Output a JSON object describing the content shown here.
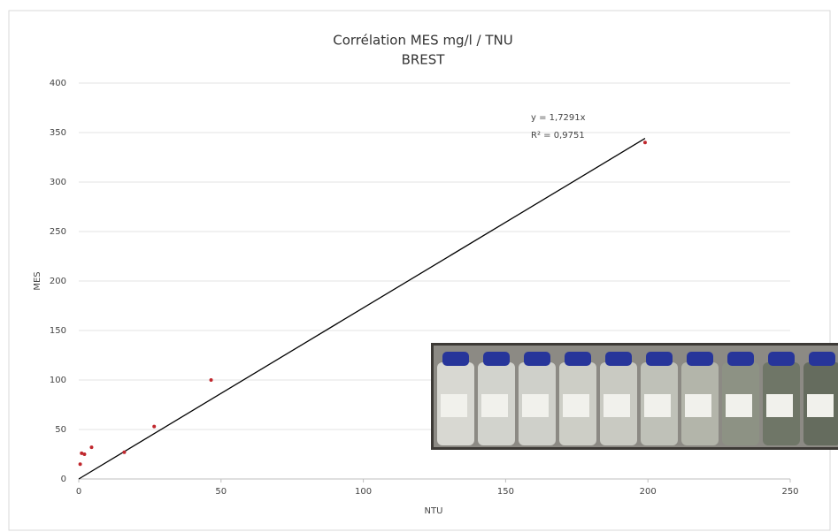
{
  "chart_data": {
    "type": "scatter",
    "title": "Corrélation MES mg/l / TNU",
    "subtitle": "BREST",
    "x_label": "NTU",
    "y_label": "MES",
    "series": [
      {
        "name": "MES",
        "color": "#c0272d",
        "x": [
          0.5,
          1,
          2,
          4.5,
          16,
          26.5,
          46.5,
          199
        ],
        "values": [
          15,
          26,
          25,
          32,
          27,
          53,
          100,
          340
        ]
      }
    ],
    "trendline": {
      "slope": 1.7291,
      "equation": "y = 1,7291x",
      "r2": "R² = 0,9751",
      "color": "#000000"
    },
    "xlim": [
      0,
      250
    ],
    "xticks": [
      0,
      50,
      100,
      150,
      200,
      250
    ],
    "ylim": [
      0,
      400
    ],
    "yticks": [
      0,
      50,
      100,
      150,
      200,
      250,
      300,
      350,
      400
    ],
    "grid": true
  }
}
